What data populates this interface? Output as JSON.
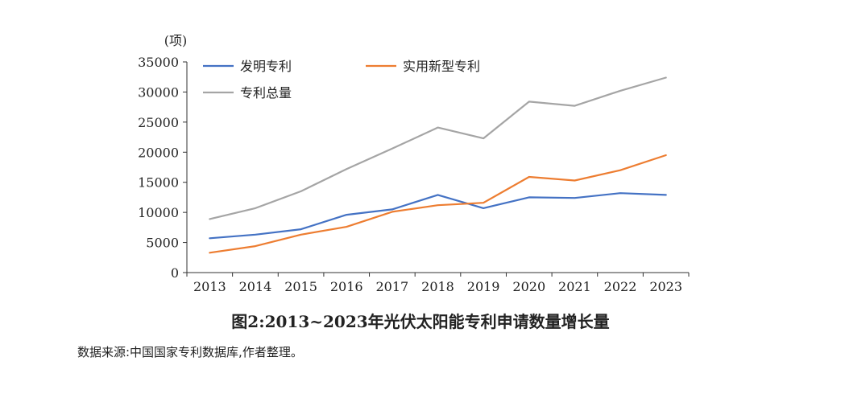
{
  "chart_data": {
    "type": "line",
    "ylabel": "(项)",
    "categories": [
      "2013",
      "2014",
      "2015",
      "2016",
      "2017",
      "2018",
      "2019",
      "2020",
      "2021",
      "2022",
      "2023"
    ],
    "ylim": [
      0,
      35000
    ],
    "yticks": [
      0,
      5000,
      10000,
      15000,
      20000,
      25000,
      30000,
      35000
    ],
    "grid": false,
    "legend_position": "top",
    "series": [
      {
        "name": "发明专利",
        "color": "#4472C4",
        "values": [
          5700,
          6300,
          7200,
          9600,
          10500,
          12900,
          10700,
          12500,
          12400,
          13200,
          12900
        ]
      },
      {
        "name": "实用新型专利",
        "color": "#ED7D31",
        "values": [
          3300,
          4400,
          6300,
          7600,
          10100,
          11200,
          11600,
          15900,
          15300,
          17000,
          19500
        ]
      },
      {
        "name": "专利总量",
        "color": "#A5A5A5",
        "values": [
          8900,
          10700,
          13500,
          17200,
          20600,
          24100,
          22300,
          28400,
          27700,
          30200,
          32400
        ]
      }
    ]
  },
  "caption": "图2:2013~2023年光伏太阳能专利申请数量增长量",
  "source_note": "数据来源:中国国家专利数据库,作者整理。"
}
